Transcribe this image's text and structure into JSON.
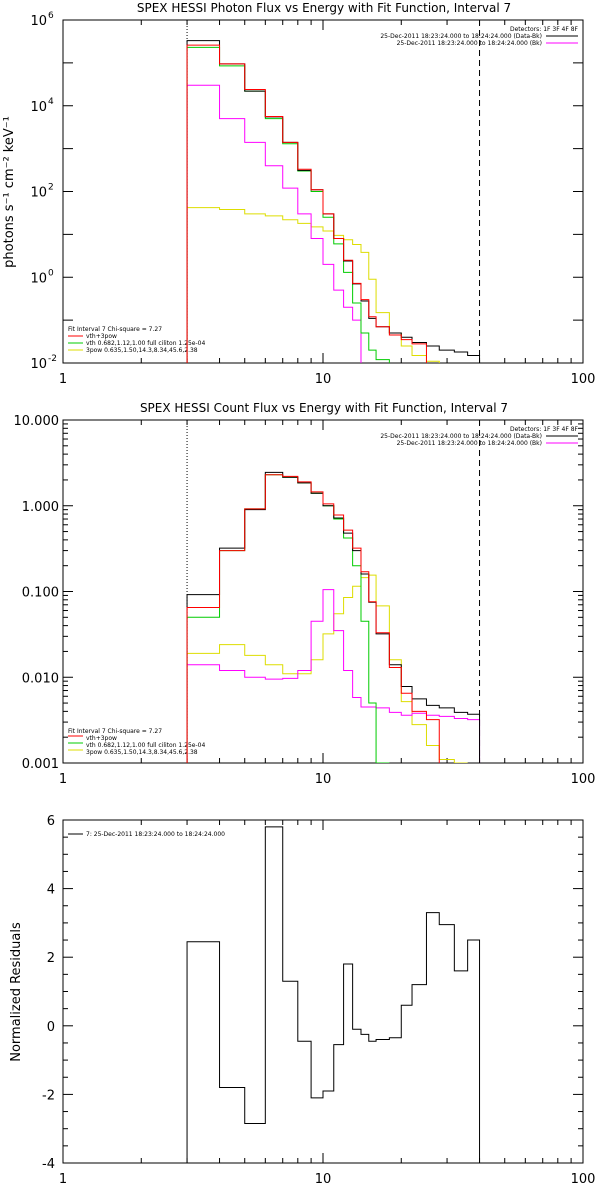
{
  "chart_data": [
    {
      "type": "line",
      "title": "SPEX HESSI Photon Flux vs Energy with Fit Function, Interval 7",
      "xscale": "log",
      "yscale": "log",
      "xlim": [
        1,
        100
      ],
      "ylim": [
        0.01,
        1000000
      ],
      "xticks": [
        "1",
        "10",
        "100"
      ],
      "yticks": [
        {
          "base": "10",
          "exp": "6"
        },
        {
          "base": "10",
          "exp": "4"
        },
        {
          "base": "10",
          "exp": "2"
        },
        {
          "base": "10",
          "exp": "0"
        },
        {
          "base": "10",
          "exp": "-2"
        }
      ],
      "ylabel": "photons s⁻¹ cm⁻² keV⁻¹",
      "detectors": "Detectors: 1F 3F 4F 8F",
      "header_legend": [
        {
          "label": "25-Dec-2011 18:23:24.000 to 18:24:24.000 (Data-Bk)",
          "color": "#000000"
        },
        {
          "label": "25-Dec-2011 18:23:24.000 to 18:24:24.000 (Bk)",
          "color": "#ff00ff"
        }
      ],
      "fit_legend_title": "Fit Interval  7    Chi-square = 7.27",
      "fit_legend": [
        {
          "label": "vth+3pow",
          "color": "#ff0000"
        },
        {
          "label": "vth 0.682,1.12,1.00  full ciliton 1.25e-04",
          "color": "#00cc00"
        },
        {
          "label": "3pow 0.635,1.50,14.3,8.34,45.6,2.38",
          "color": "#dddd00"
        }
      ],
      "edges": [
        3,
        4,
        5,
        6,
        7,
        8,
        9,
        10,
        11,
        12,
        13,
        14,
        15,
        16,
        18,
        20,
        22,
        25,
        28,
        32,
        36,
        40
      ],
      "markers": [
        {
          "x": 3,
          "style": "dotted"
        },
        {
          "x": 40,
          "style": "dashed"
        }
      ],
      "series": [
        {
          "name": "Data-Bk",
          "color": "#000000",
          "values": [
            330000,
            95000,
            22000,
            5500,
            1400,
            310,
            110,
            30,
            8.0,
            2.4,
            0.7,
            0.28,
            0.11,
            0.07,
            0.05,
            0.04,
            0.03,
            0.025,
            0.02,
            0.018,
            0.015
          ]
        },
        {
          "name": "Bk",
          "color": "#ff00ff",
          "values": [
            30000,
            5000,
            1400,
            400,
            120,
            30,
            8.0,
            2.0,
            0.5,
            0.2,
            0.1
          ]
        },
        {
          "name": "vth+3pow",
          "color": "#ff0000",
          "values": [
            260000,
            95000,
            24000,
            5600,
            1400,
            330,
            110,
            30,
            8.0,
            2.5,
            0.72,
            0.3,
            0.12,
            0.07,
            0.045,
            0.035,
            0.028
          ]
        },
        {
          "name": "vth",
          "color": "#00cc00",
          "values": [
            230000,
            85000,
            22000,
            5000,
            1300,
            300,
            100,
            25,
            6.0,
            1.3,
            0.25,
            0.05,
            0.02,
            0.012
          ]
        },
        {
          "name": "3pow",
          "color": "#dddd00",
          "values": [
            42,
            38,
            30,
            27,
            22,
            18,
            15,
            12,
            9.5,
            7.5,
            5.8,
            3.8,
            0.9,
            0.15,
            0.05,
            0.025,
            0.015,
            0.011
          ]
        }
      ]
    },
    {
      "type": "line",
      "title": "SPEX HESSI Count Flux vs Energy with Fit Function, Interval 7",
      "xscale": "log",
      "yscale": "log",
      "xlim": [
        1,
        100
      ],
      "ylim": [
        0.001,
        10
      ],
      "xticks": [
        "1",
        "10",
        "100"
      ],
      "yticks": [
        "10.000",
        "1.000",
        "0.100",
        "0.010",
        "0.001"
      ],
      "detectors": "Detectors: 1F 3F 4F 8F",
      "header_legend": [
        {
          "label": "25-Dec-2011 18:23:24.000 to 18:24:24.000 (Data-Bk)",
          "color": "#000000"
        },
        {
          "label": "25-Dec-2011 18:23:24.000 to 18:24:24.000 (Bk)",
          "color": "#ff00ff"
        }
      ],
      "fit_legend_title": "Fit Interval  7    Chi-square = 7.27",
      "fit_legend": [
        {
          "label": "vth+3pow",
          "color": "#ff0000"
        },
        {
          "label": "vth 0.682,1.12,1.00  full ciliton 1.25e-04",
          "color": "#00cc00"
        },
        {
          "label": "3pow 0.635,1.50,14.3,8.34,45.6,2.38",
          "color": "#dddd00"
        }
      ],
      "edges": [
        3,
        4,
        5,
        6,
        7,
        8,
        9,
        10,
        11,
        12,
        13,
        14,
        15,
        16,
        18,
        20,
        22,
        25,
        28,
        32,
        36,
        40
      ],
      "markers": [
        {
          "x": 3,
          "style": "dotted"
        },
        {
          "x": 40,
          "style": "dashed"
        }
      ],
      "series": [
        {
          "name": "Data-Bk",
          "color": "#000000",
          "values": [
            0.092,
            0.32,
            0.9,
            2.45,
            2.15,
            1.85,
            1.4,
            1.0,
            0.72,
            0.48,
            0.3,
            0.16,
            0.075,
            0.032,
            0.014,
            0.0078,
            0.0056,
            0.0047,
            0.0044,
            0.0039,
            0.0037
          ]
        },
        {
          "name": "Bk",
          "color": "#ff00ff",
          "values": [
            0.014,
            0.012,
            0.01,
            0.0095,
            0.0097,
            0.012,
            0.045,
            0.105,
            0.035,
            0.012,
            0.0058,
            0.0045,
            0.0045,
            0.0044,
            0.0039,
            0.0036,
            0.0038,
            0.0036,
            0.0035,
            0.0033,
            0.0032
          ]
        },
        {
          "name": "vth+3pow",
          "color": "#ff0000",
          "values": [
            0.065,
            0.3,
            0.92,
            2.3,
            2.2,
            1.9,
            1.45,
            1.05,
            0.78,
            0.52,
            0.32,
            0.17,
            0.076,
            0.033,
            0.013,
            0.0065,
            0.004,
            0.0032
          ]
        },
        {
          "name": "vth",
          "color": "#00cc00",
          "values": [
            0.05,
            0.3,
            0.92,
            2.3,
            2.15,
            1.85,
            1.4,
            1.0,
            0.7,
            0.42,
            0.2,
            0.045,
            0.005,
            0.001
          ]
        },
        {
          "name": "3pow",
          "color": "#dddd00",
          "values": [
            0.019,
            0.024,
            0.018,
            0.014,
            0.011,
            0.011,
            0.016,
            0.032,
            0.055,
            0.085,
            0.115,
            0.145,
            0.155,
            0.068,
            0.016,
            0.0052,
            0.0028,
            0.0016,
            0.0011,
            0.001
          ]
        }
      ]
    },
    {
      "type": "line",
      "title": "",
      "xscale": "log",
      "yscale": "linear",
      "xlim": [
        1,
        100
      ],
      "ylim": [
        -4,
        6
      ],
      "xticks": [
        "1",
        "10",
        "100"
      ],
      "yticks": [
        "6",
        "4",
        "2",
        "0",
        "-2",
        "-4"
      ],
      "ylabel": "Normalized Residuals",
      "legend": [
        {
          "label": "7: 25-Dec-2011 18:23:24.000 to 18:24:24.000",
          "color": "#000000"
        }
      ],
      "edges": [
        3,
        4,
        5,
        6,
        7,
        8,
        9,
        10,
        11,
        12,
        13,
        14,
        15,
        16,
        18,
        20,
        22,
        25,
        28,
        32,
        36,
        40
      ],
      "series": [
        {
          "name": "7: 25-Dec-2011 18:23:24.000 to 18:24:24.000",
          "color": "#000000",
          "values": [
            2.45,
            -1.8,
            -2.85,
            5.8,
            1.3,
            -0.45,
            -2.1,
            -1.9,
            -0.55,
            1.8,
            -0.1,
            -0.25,
            -0.45,
            -0.4,
            -0.35,
            0.6,
            1.2,
            3.3,
            2.95,
            1.6,
            2.5
          ]
        }
      ]
    }
  ]
}
